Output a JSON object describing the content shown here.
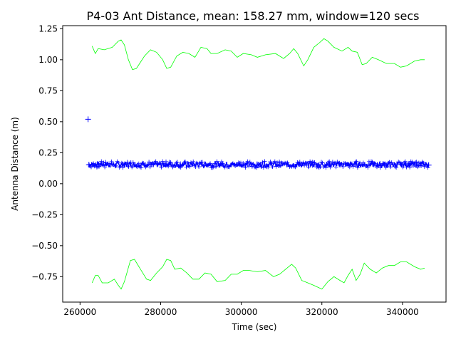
{
  "chart_data": {
    "type": "line",
    "title": "P4-03 Ant Distance, mean: 158.27 mm, window=120 secs",
    "xlabel": "Time (sec)",
    "ylabel": "Antenna Distance (m)",
    "xlim": [
      255700,
      350800
    ],
    "ylim": [
      -0.955,
      1.275
    ],
    "x_ticks": [
      260000,
      280000,
      300000,
      320000,
      340000
    ],
    "x_tick_labels": [
      "260000",
      "280000",
      "300000",
      "320000",
      "340000"
    ],
    "y_ticks": [
      -0.75,
      -0.5,
      -0.25,
      0.0,
      0.25,
      0.5,
      0.75,
      1.0,
      1.25
    ],
    "y_tick_labels": [
      "−0.75",
      "−0.50",
      "−0.25",
      "0.00",
      "0.25",
      "0.50",
      "0.75",
      "1.00",
      "1.25"
    ],
    "grid": false,
    "colors": {
      "data": "#0000ff",
      "bounds": "#00ff00"
    },
    "series": [
      {
        "style": "line-with-plus-markers",
        "color": "#0000ff",
        "x_range": [
          262200,
          346500
        ],
        "mean": 0.158,
        "band": [
          0.13,
          0.18
        ]
      },
      {
        "style": "plus-marker",
        "color": "#0000ff",
        "points": [
          [
            262000,
            0.52
          ]
        ]
      },
      {
        "style": "thin-line",
        "color": "#00ff00",
        "points": [
          [
            263000,
            1.11
          ],
          [
            263800,
            1.05
          ],
          [
            264500,
            1.09
          ],
          [
            266000,
            1.08
          ],
          [
            268000,
            1.1
          ],
          [
            269500,
            1.15
          ],
          [
            270200,
            1.16
          ],
          [
            271000,
            1.12
          ],
          [
            272000,
            1.0
          ],
          [
            273000,
            0.92
          ],
          [
            274000,
            0.93
          ],
          [
            276000,
            1.03
          ],
          [
            277500,
            1.08
          ],
          [
            279000,
            1.06
          ],
          [
            280500,
            1.0
          ],
          [
            281500,
            0.93
          ],
          [
            282500,
            0.94
          ],
          [
            284000,
            1.03
          ],
          [
            285500,
            1.06
          ],
          [
            287000,
            1.05
          ],
          [
            288500,
            1.02
          ],
          [
            290000,
            1.1
          ],
          [
            291500,
            1.09
          ],
          [
            292500,
            1.05
          ],
          [
            294000,
            1.05
          ],
          [
            296000,
            1.08
          ],
          [
            297500,
            1.07
          ],
          [
            299000,
            1.02
          ],
          [
            300500,
            1.05
          ],
          [
            302500,
            1.04
          ],
          [
            304000,
            1.02
          ],
          [
            306000,
            1.04
          ],
          [
            308500,
            1.05
          ],
          [
            310500,
            1.01
          ],
          [
            312000,
            1.05
          ],
          [
            313000,
            1.09
          ],
          [
            314000,
            1.05
          ],
          [
            315500,
            0.95
          ],
          [
            316500,
            1.0
          ],
          [
            318000,
            1.1
          ],
          [
            319500,
            1.14
          ],
          [
            320500,
            1.17
          ],
          [
            321500,
            1.15
          ],
          [
            323000,
            1.1
          ],
          [
            325000,
            1.07
          ],
          [
            326500,
            1.1
          ],
          [
            327500,
            1.07
          ],
          [
            328800,
            1.06
          ],
          [
            330000,
            0.96
          ],
          [
            331000,
            0.97
          ],
          [
            332500,
            1.02
          ],
          [
            334000,
            1.0
          ],
          [
            336000,
            0.97
          ],
          [
            338000,
            0.97
          ],
          [
            339500,
            0.94
          ],
          [
            341000,
            0.95
          ],
          [
            343000,
            0.99
          ],
          [
            344500,
            1.0
          ],
          [
            345500,
            1.0
          ]
        ]
      },
      {
        "style": "thin-line",
        "color": "#00ff00",
        "points": [
          [
            263000,
            -0.8
          ],
          [
            263800,
            -0.74
          ],
          [
            264500,
            -0.74
          ],
          [
            265500,
            -0.8
          ],
          [
            267000,
            -0.8
          ],
          [
            268500,
            -0.77
          ],
          [
            269500,
            -0.82
          ],
          [
            270200,
            -0.85
          ],
          [
            271000,
            -0.79
          ],
          [
            272500,
            -0.62
          ],
          [
            273500,
            -0.61
          ],
          [
            275000,
            -0.69
          ],
          [
            276500,
            -0.77
          ],
          [
            277500,
            -0.78
          ],
          [
            279000,
            -0.72
          ],
          [
            280500,
            -0.67
          ],
          [
            281500,
            -0.61
          ],
          [
            282500,
            -0.62
          ],
          [
            283500,
            -0.69
          ],
          [
            285000,
            -0.68
          ],
          [
            286500,
            -0.72
          ],
          [
            288000,
            -0.77
          ],
          [
            289500,
            -0.77
          ],
          [
            291000,
            -0.72
          ],
          [
            292500,
            -0.73
          ],
          [
            294000,
            -0.79
          ],
          [
            296000,
            -0.78
          ],
          [
            297500,
            -0.73
          ],
          [
            299000,
            -0.73
          ],
          [
            300500,
            -0.7
          ],
          [
            302000,
            -0.7
          ],
          [
            304000,
            -0.71
          ],
          [
            306000,
            -0.7
          ],
          [
            308000,
            -0.75
          ],
          [
            309500,
            -0.73
          ],
          [
            311000,
            -0.69
          ],
          [
            312500,
            -0.65
          ],
          [
            313500,
            -0.68
          ],
          [
            315000,
            -0.78
          ],
          [
            316500,
            -0.8
          ],
          [
            318000,
            -0.82
          ],
          [
            320000,
            -0.85
          ],
          [
            321500,
            -0.79
          ],
          [
            323000,
            -0.75
          ],
          [
            324500,
            -0.78
          ],
          [
            325500,
            -0.8
          ],
          [
            326500,
            -0.74
          ],
          [
            327500,
            -0.69
          ],
          [
            328500,
            -0.78
          ],
          [
            329500,
            -0.73
          ],
          [
            330500,
            -0.64
          ],
          [
            332000,
            -0.69
          ],
          [
            333500,
            -0.72
          ],
          [
            335000,
            -0.68
          ],
          [
            336500,
            -0.66
          ],
          [
            338000,
            -0.66
          ],
          [
            339500,
            -0.63
          ],
          [
            341000,
            -0.63
          ],
          [
            343000,
            -0.67
          ],
          [
            344500,
            -0.69
          ],
          [
            345500,
            -0.68
          ]
        ]
      }
    ]
  }
}
